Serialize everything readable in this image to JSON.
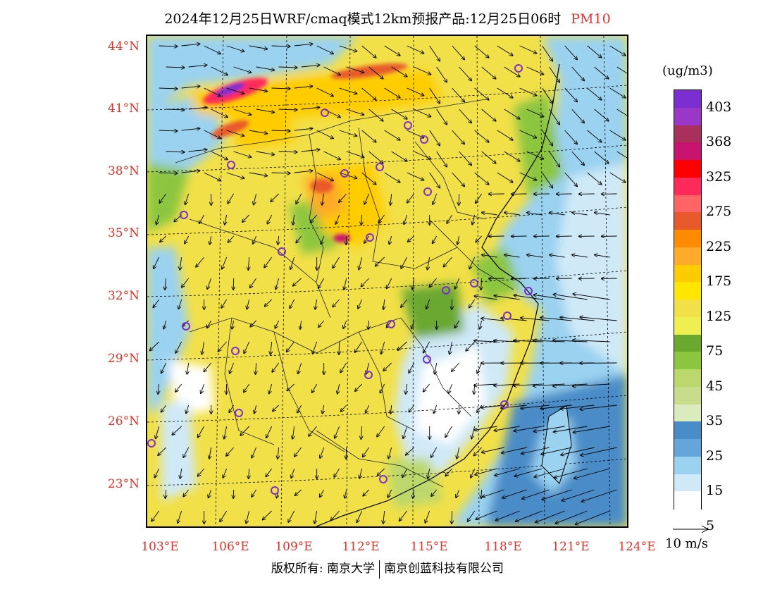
{
  "title": {
    "text": "2024年12月25日WRF/cmaq模式12km预报产品:12月25日06时",
    "pollutant": "PM10"
  },
  "axes": {
    "lat_labels": [
      "44°N",
      "41°N",
      "38°N",
      "35°N",
      "32°N",
      "29°N",
      "26°N",
      "23°N"
    ],
    "lon_labels": [
      "103°E",
      "106°E",
      "109°E",
      "112°E",
      "115°E",
      "118°E",
      "121°E",
      "124°E"
    ]
  },
  "legend": {
    "unit": "(ug/m3)",
    "labels": [
      "403",
      "368",
      "325",
      "275",
      "225",
      "175",
      "125",
      "75",
      "45",
      "35",
      "25",
      "15",
      "5"
    ],
    "colors": [
      "#7b2fd0",
      "#9a36c8",
      "#a8305a",
      "#c8146e",
      "#ff0000",
      "#ff2a5a",
      "#ff6464",
      "#e85a2c",
      "#ff8c00",
      "#ffaa28",
      "#ffcc00",
      "#ffe600",
      "#f2e048",
      "#eef052",
      "#6aa830",
      "#8cc640",
      "#bcd86c",
      "#c8dc8c",
      "#dcebbe",
      "#4a8cc8",
      "#64a6dc",
      "#9ad2f0",
      "#cfe9f7",
      "#ffffff"
    ]
  },
  "vector_reference": {
    "label": "10 m/s"
  },
  "footer": {
    "rights": "版权所有: 南京大学",
    "company": "南京创蓝科技有限公司"
  }
}
